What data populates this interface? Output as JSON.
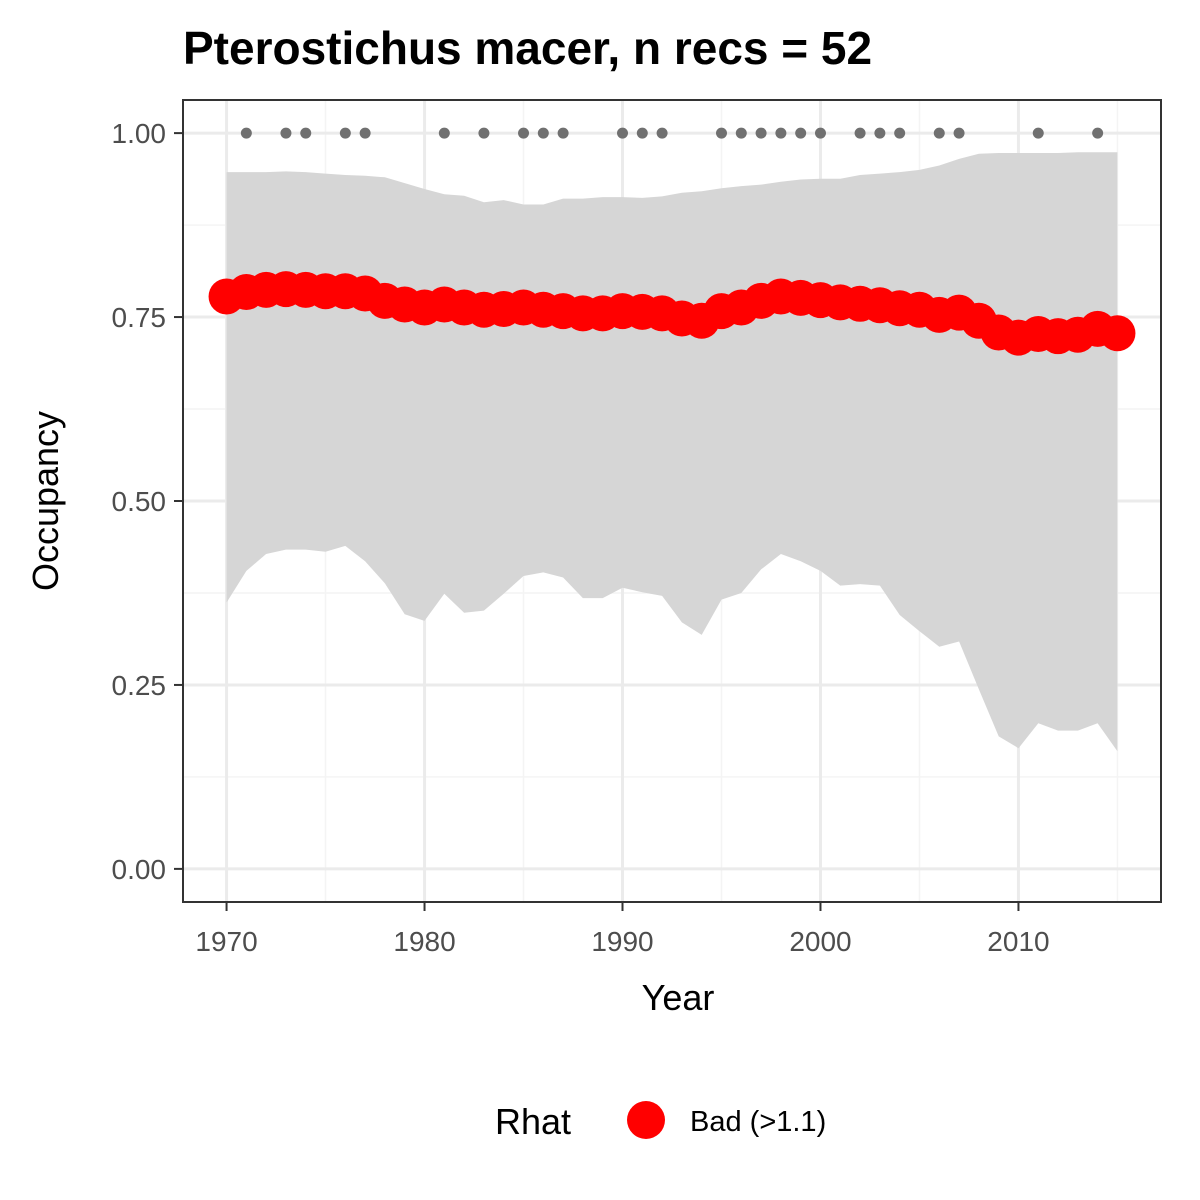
{
  "chart_data": {
    "type": "line",
    "title": "Pterostichus macer, n recs = 52",
    "xlabel": "Year",
    "ylabel": "Occupancy",
    "xlim": [
      1967.8,
      2017.2
    ],
    "ylim": [
      -0.045,
      1.045
    ],
    "x_ticks": [
      1970,
      1980,
      1990,
      2000,
      2010
    ],
    "x_tick_labels": [
      "1970",
      "1980",
      "1990",
      "2000",
      "2010"
    ],
    "y_ticks": [
      0,
      0.25,
      0.5,
      0.75,
      1
    ],
    "y_tick_labels": [
      "0.00",
      "0.25",
      "0.50",
      "0.75",
      "1.00"
    ],
    "grid": true,
    "colors": {
      "mean_points": "#ff0000",
      "ribbon": "#d6d6d6",
      "record_points": "#707070",
      "panel_border": "#333333",
      "grid_major": "#ebebeb",
      "grid_minor": "#f4f4f4"
    },
    "years": [
      1970,
      1971,
      1972,
      1973,
      1974,
      1975,
      1976,
      1977,
      1978,
      1979,
      1980,
      1981,
      1982,
      1983,
      1984,
      1985,
      1986,
      1987,
      1988,
      1989,
      1990,
      1991,
      1992,
      1993,
      1994,
      1995,
      1996,
      1997,
      1998,
      1999,
      2000,
      2001,
      2002,
      2003,
      2004,
      2005,
      2006,
      2007,
      2008,
      2009,
      2010,
      2011,
      2012,
      2013,
      2014,
      2015
    ],
    "mean": [
      0.778,
      0.784,
      0.787,
      0.788,
      0.787,
      0.785,
      0.785,
      0.782,
      0.772,
      0.767,
      0.763,
      0.767,
      0.763,
      0.76,
      0.761,
      0.763,
      0.76,
      0.758,
      0.755,
      0.755,
      0.758,
      0.757,
      0.755,
      0.748,
      0.745,
      0.758,
      0.763,
      0.772,
      0.778,
      0.776,
      0.773,
      0.77,
      0.768,
      0.766,
      0.762,
      0.76,
      0.753,
      0.756,
      0.745,
      0.729,
      0.722,
      0.727,
      0.724,
      0.726,
      0.734,
      0.728
    ],
    "upper": [
      0.947,
      0.947,
      0.947,
      0.948,
      0.947,
      0.945,
      0.943,
      0.942,
      0.94,
      0.932,
      0.924,
      0.917,
      0.915,
      0.906,
      0.909,
      0.903,
      0.903,
      0.911,
      0.911,
      0.913,
      0.913,
      0.912,
      0.914,
      0.919,
      0.921,
      0.925,
      0.928,
      0.93,
      0.934,
      0.937,
      0.938,
      0.938,
      0.943,
      0.945,
      0.947,
      0.95,
      0.956,
      0.965,
      0.972,
      0.973,
      0.973,
      0.973,
      0.973,
      0.974,
      0.974,
      0.974
    ],
    "lower": [
      0.362,
      0.405,
      0.428,
      0.434,
      0.434,
      0.431,
      0.439,
      0.418,
      0.388,
      0.346,
      0.337,
      0.374,
      0.348,
      0.351,
      0.374,
      0.398,
      0.403,
      0.396,
      0.368,
      0.368,
      0.382,
      0.376,
      0.371,
      0.335,
      0.318,
      0.366,
      0.375,
      0.407,
      0.428,
      0.418,
      0.405,
      0.385,
      0.387,
      0.385,
      0.345,
      0.323,
      0.302,
      0.309,
      0.244,
      0.18,
      0.164,
      0.198,
      0.188,
      0.188,
      0.198,
      0.16
    ],
    "record_years": [
      1971,
      1973,
      1974,
      1976,
      1977,
      1981,
      1983,
      1985,
      1986,
      1987,
      1990,
      1991,
      1992,
      1995,
      1996,
      1997,
      1998,
      1999,
      2000,
      2002,
      2003,
      2004,
      2006,
      2007,
      2011,
      2014
    ],
    "record_value": 1.0,
    "legend": {
      "title": "Rhat",
      "label": "Bad (>1.1)",
      "position": "bottom"
    }
  }
}
